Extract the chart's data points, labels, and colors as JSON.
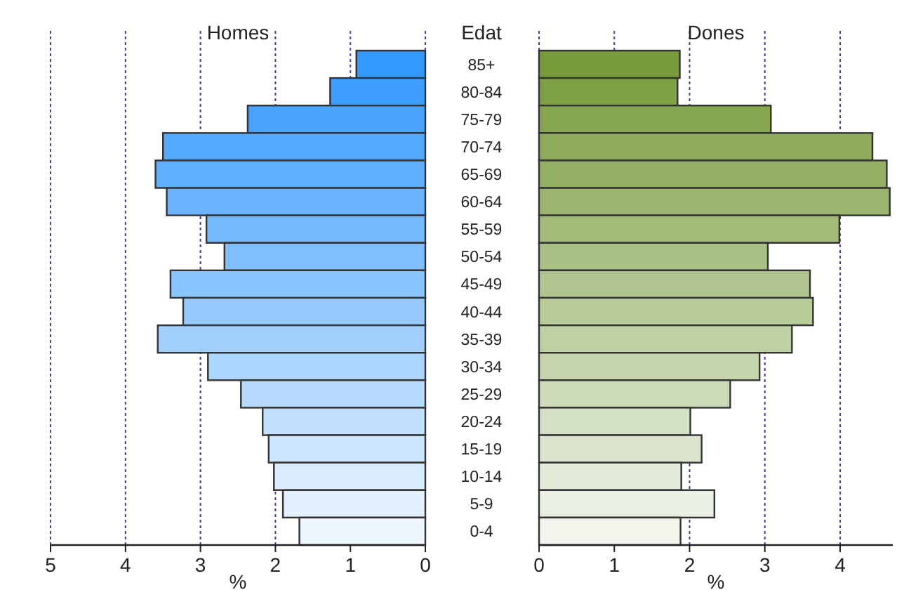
{
  "chart_data": [
    {
      "type": "bar",
      "orientation": "horizontal",
      "title": "Homes",
      "ylabel": "Edat",
      "xlabel": "%",
      "categories": [
        "85+",
        "80-84",
        "75-79",
        "70-74",
        "65-69",
        "60-64",
        "55-59",
        "50-54",
        "45-49",
        "40-44",
        "35-39",
        "30-34",
        "25-29",
        "20-24",
        "15-19",
        "10-14",
        "5-9",
        "0-4"
      ],
      "values": [
        0.92,
        1.27,
        2.37,
        3.5,
        3.6,
        3.45,
        2.92,
        2.68,
        3.4,
        3.23,
        3.57,
        2.9,
        2.46,
        2.17,
        2.09,
        2.02,
        1.9,
        1.68
      ],
      "colors": [
        "#3399ff",
        "#3e9eff",
        "#49a4ff",
        "#54a9ff",
        "#5fafff",
        "#6ab4ff",
        "#75baff",
        "#80bfff",
        "#8bc5ff",
        "#96caff",
        "#a1d0ff",
        "#acd5ff",
        "#b7dbff",
        "#c2e0ff",
        "#cde6ff",
        "#d8ebff",
        "#e3f1ff",
        "#eef6ff"
      ],
      "xlim": [
        5,
        0
      ],
      "xticks": [
        5,
        4,
        3,
        2,
        1,
        0
      ],
      "grid": "x"
    },
    {
      "type": "bar",
      "orientation": "horizontal",
      "title": "Dones",
      "xlabel": "%",
      "categories": [
        null,
        null,
        null,
        null,
        null,
        null,
        null,
        null,
        null,
        null,
        null,
        null,
        null,
        null,
        null,
        null,
        null,
        null
      ],
      "values": [
        1.87,
        1.84,
        3.08,
        4.43,
        4.62,
        4.66,
        3.99,
        3.04,
        3.6,
        3.64,
        3.36,
        2.93,
        2.54,
        2.01,
        2.16,
        1.89,
        2.33,
        1.88
      ],
      "colors": [
        "#779b3a",
        "#7ea045",
        "#86a64f",
        "#8dab5a",
        "#94b064",
        "#9bb56f",
        "#a2bb79",
        "#a9c084",
        "#b0c58f",
        "#b8cb99",
        "#bfd0a4",
        "#c6d5ae",
        "#cddab9",
        "#d4e0c3",
        "#dbe5ce",
        "#e2ead8",
        "#e9f0e3",
        "#f2f5ec"
      ],
      "xlim": [
        0,
        4.7
      ],
      "xticks": [
        0,
        1,
        2,
        3,
        4
      ],
      "grid": "x",
      "tick_labels": "x"
    }
  ]
}
